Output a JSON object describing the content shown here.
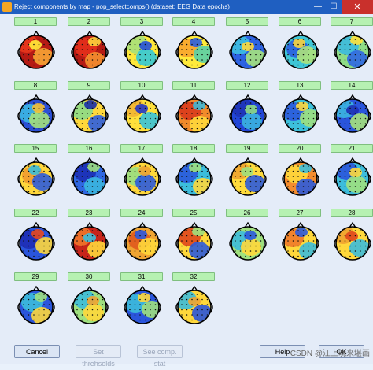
{
  "window": {
    "title": "Reject components by map - pop_selectcomps() (dataset: EEG Data epochs)",
    "close_glyph": "✕"
  },
  "components": [
    {
      "label": "1",
      "colors": [
        "#b51a14",
        "#e8371c",
        "#f7a534",
        "#ffeb39"
      ]
    },
    {
      "label": "2",
      "colors": [
        "#b51a14",
        "#e4301b",
        "#f5902f",
        "#fdd33c"
      ]
    },
    {
      "label": "3",
      "colors": [
        "#ffe83a",
        "#a7e07b",
        "#33c9d8",
        "#2650d8"
      ]
    },
    {
      "label": "4",
      "colors": [
        "#ffea3b",
        "#f8a52f",
        "#59cfa8",
        "#2b5fe0"
      ]
    },
    {
      "label": "5",
      "colors": [
        "#2d63e3",
        "#3dbfe0",
        "#a6e37c",
        "#ffd83c"
      ]
    },
    {
      "label": "6",
      "colors": [
        "#3fc6d6",
        "#2a5ddf",
        "#aee27a",
        "#fdd53b"
      ]
    },
    {
      "label": "7",
      "colors": [
        "#8edc86",
        "#3cbadf",
        "#2f67e3",
        "#ffe13b"
      ]
    },
    {
      "label": "8",
      "colors": [
        "#2b4fd6",
        "#3bb6e3",
        "#a4e17c",
        "#f6c033"
      ]
    },
    {
      "label": "9",
      "colors": [
        "#ffd83b",
        "#8cdc88",
        "#2d5fe0",
        "#1a2fa8"
      ]
    },
    {
      "label": "10",
      "colors": [
        "#ffe03b",
        "#f3b533",
        "#39c3d9",
        "#2236c6"
      ]
    },
    {
      "label": "11",
      "colors": [
        "#f18a2b",
        "#d93a1c",
        "#ffd83b",
        "#3eb9d8"
      ]
    },
    {
      "label": "12",
      "colors": [
        "#2246d8",
        "#1e34b8",
        "#3bb3e0",
        "#8fdc84"
      ]
    },
    {
      "label": "13",
      "colors": [
        "#3cc0dc",
        "#2a59dc",
        "#9fe07e",
        "#ffd73b"
      ]
    },
    {
      "label": "14",
      "colors": [
        "#2a55dc",
        "#3bb5e0",
        "#a5e17b",
        "#1e2db5"
      ]
    },
    {
      "label": "15",
      "colors": [
        "#ffd73b",
        "#f19b2f",
        "#2d5ddd",
        "#39bfdc"
      ]
    },
    {
      "label": "16",
      "colors": [
        "#2f67e2",
        "#1c2fb6",
        "#3bb6df",
        "#9ddf80"
      ]
    },
    {
      "label": "17",
      "colors": [
        "#ffd83b",
        "#98df83",
        "#2c5bdd",
        "#f0a431"
      ]
    },
    {
      "label": "18",
      "colors": [
        "#3cbddc",
        "#2a59dc",
        "#ffd83b",
        "#9fe07e"
      ]
    },
    {
      "label": "19",
      "colors": [
        "#ffdb3b",
        "#f0a431",
        "#2c5bdd",
        "#9fe07e"
      ]
    },
    {
      "label": "20",
      "colors": [
        "#f48c2d",
        "#ffd83b",
        "#2c5bdd",
        "#3cbddc"
      ]
    },
    {
      "label": "21",
      "colors": [
        "#3cbddc",
        "#2a55dc",
        "#9fe07e",
        "#ffd83b"
      ]
    },
    {
      "label": "22",
      "colors": [
        "#2a55dc",
        "#1e2db5",
        "#ffd83b",
        "#e8481e"
      ]
    },
    {
      "label": "23",
      "colors": [
        "#c8241a",
        "#f0762a",
        "#ffd83b",
        "#3cbddc"
      ]
    },
    {
      "label": "24",
      "colors": [
        "#f0a431",
        "#e05a1e",
        "#ffd83b",
        "#2c5bdd"
      ]
    },
    {
      "label": "25",
      "colors": [
        "#ffd83b",
        "#e0461d",
        "#2c5bdd",
        "#9fe07e"
      ]
    },
    {
      "label": "26",
      "colors": [
        "#9fe07e",
        "#3cbddc",
        "#ffd83b",
        "#2a59dc"
      ]
    },
    {
      "label": "27",
      "colors": [
        "#ffd83b",
        "#f07a2a",
        "#3cbddc",
        "#2c5bdd"
      ]
    },
    {
      "label": "28",
      "colors": [
        "#ffd83b",
        "#f0a431",
        "#3cbddc",
        "#e0461d"
      ]
    },
    {
      "label": "29",
      "colors": [
        "#2a55dc",
        "#3cbddc",
        "#ffd83b",
        "#9fe07e"
      ]
    },
    {
      "label": "30",
      "colors": [
        "#9fe07e",
        "#3cbddc",
        "#ffd83b",
        "#f0a431"
      ]
    },
    {
      "label": "31",
      "colors": [
        "#2a55dc",
        "#3cbddc",
        "#9fe07e",
        "#ffd83b"
      ]
    },
    {
      "label": "32",
      "colors": [
        "#ffd83b",
        "#3cbddc",
        "#2a55dc",
        "#f0a431"
      ]
    }
  ],
  "buttons": {
    "cancel": "Cancel",
    "set_thresholds": "Set threhsolds",
    "see_comp_stats": "See comp. stat",
    "help": "Help",
    "ok": "OK"
  },
  "watermark": "CSDN @江上晚来堪画"
}
